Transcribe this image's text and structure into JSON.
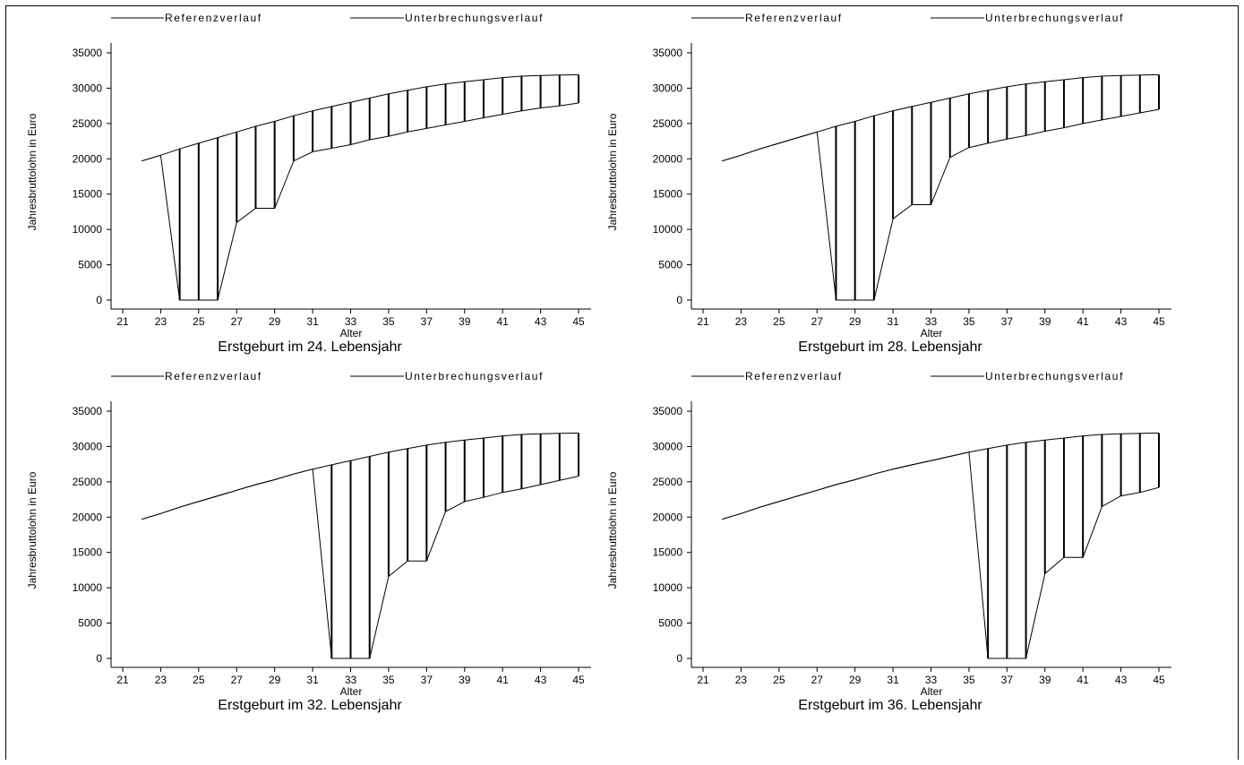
{
  "legend": {
    "reference_label": "Referenzverlauf",
    "interruption_label": "Unterbrechungsverlauf"
  },
  "chart_data": [
    {
      "type": "line",
      "title": "Erstgeburt im 24. Lebensjahr",
      "xlabel": "Alter",
      "ylabel": "Jahresbruttolohn in Euro",
      "xlim": [
        21,
        45
      ],
      "ylim": [
        0,
        35000
      ],
      "xticks": [
        21,
        23,
        25,
        27,
        29,
        31,
        33,
        35,
        37,
        39,
        41,
        43,
        45
      ],
      "yticks": [
        0,
        5000,
        10000,
        15000,
        20000,
        25000,
        30000,
        35000
      ],
      "x": [
        22,
        23,
        24,
        25,
        26,
        27,
        28,
        29,
        30,
        31,
        32,
        33,
        34,
        35,
        36,
        37,
        38,
        39,
        40,
        41,
        42,
        43,
        44,
        45
      ],
      "series": [
        {
          "name": "Referenzverlauf",
          "values": [
            19700,
            20500,
            21400,
            22200,
            23000,
            23800,
            24600,
            25300,
            26100,
            26800,
            27400,
            28000,
            28600,
            29200,
            29700,
            30200,
            30600,
            30900,
            31200,
            31500,
            31700,
            31800,
            31850,
            31900
          ]
        },
        {
          "name": "Unterbrechungsverlauf",
          "values": [
            19700,
            20500,
            0,
            0,
            0,
            11000,
            13000,
            13000,
            19700,
            21000,
            21500,
            22000,
            22700,
            23200,
            23800,
            24300,
            24800,
            25300,
            25800,
            26300,
            26800,
            27200,
            27500,
            27900
          ]
        }
      ],
      "grid": false,
      "legend_position": "top"
    },
    {
      "type": "line",
      "title": "Erstgeburt im 28. Lebensjahr",
      "xlabel": "Alter",
      "ylabel": "Jahresbruttolohn in Euro",
      "xlim": [
        21,
        45
      ],
      "ylim": [
        0,
        35000
      ],
      "xticks": [
        21,
        23,
        25,
        27,
        29,
        31,
        33,
        35,
        37,
        39,
        41,
        43,
        45
      ],
      "yticks": [
        0,
        5000,
        10000,
        15000,
        20000,
        25000,
        30000,
        35000
      ],
      "x": [
        22,
        23,
        24,
        25,
        26,
        27,
        28,
        29,
        30,
        31,
        32,
        33,
        34,
        35,
        36,
        37,
        38,
        39,
        40,
        41,
        42,
        43,
        44,
        45
      ],
      "series": [
        {
          "name": "Referenzverlauf",
          "values": [
            19700,
            20500,
            21400,
            22200,
            23000,
            23800,
            24600,
            25300,
            26100,
            26800,
            27400,
            28000,
            28600,
            29200,
            29700,
            30200,
            30600,
            30900,
            31200,
            31500,
            31700,
            31800,
            31850,
            31900
          ]
        },
        {
          "name": "Unterbrechungsverlauf",
          "values": [
            19700,
            20500,
            21400,
            22200,
            23000,
            23800,
            0,
            0,
            0,
            11500,
            13500,
            13500,
            20200,
            21600,
            22200,
            22800,
            23300,
            23900,
            24400,
            25000,
            25500,
            26000,
            26500,
            27000
          ]
        }
      ],
      "grid": false,
      "legend_position": "top"
    },
    {
      "type": "line",
      "title": "Erstgeburt im 32. Lebensjahr",
      "xlabel": "Alter",
      "ylabel": "Jahresbruttolohn in Euro",
      "xlim": [
        21,
        45
      ],
      "ylim": [
        0,
        35000
      ],
      "xticks": [
        21,
        23,
        25,
        27,
        29,
        31,
        33,
        35,
        37,
        39,
        41,
        43,
        45
      ],
      "yticks": [
        0,
        5000,
        10000,
        15000,
        20000,
        25000,
        30000,
        35000
      ],
      "x": [
        22,
        23,
        24,
        25,
        26,
        27,
        28,
        29,
        30,
        31,
        32,
        33,
        34,
        35,
        36,
        37,
        38,
        39,
        40,
        41,
        42,
        43,
        44,
        45
      ],
      "series": [
        {
          "name": "Referenzverlauf",
          "values": [
            19700,
            20500,
            21400,
            22200,
            23000,
            23800,
            24600,
            25300,
            26100,
            26800,
            27400,
            28000,
            28600,
            29200,
            29700,
            30200,
            30600,
            30900,
            31200,
            31500,
            31700,
            31800,
            31850,
            31900
          ]
        },
        {
          "name": "Unterbrechungsverlauf",
          "values": [
            19700,
            20500,
            21400,
            22200,
            23000,
            23800,
            24600,
            25300,
            26100,
            26800,
            0,
            0,
            0,
            11600,
            13800,
            13800,
            20800,
            22200,
            22800,
            23500,
            24000,
            24600,
            25200,
            25800
          ]
        }
      ],
      "grid": false,
      "legend_position": "top"
    },
    {
      "type": "line",
      "title": "Erstgeburt im 36. Lebensjahr",
      "xlabel": "Alter",
      "ylabel": "Jahresbruttolohn in Euro",
      "xlim": [
        21,
        45
      ],
      "ylim": [
        0,
        35000
      ],
      "xticks": [
        21,
        23,
        25,
        27,
        29,
        31,
        33,
        35,
        37,
        39,
        41,
        43,
        45
      ],
      "yticks": [
        0,
        5000,
        10000,
        15000,
        20000,
        25000,
        30000,
        35000
      ],
      "x": [
        22,
        23,
        24,
        25,
        26,
        27,
        28,
        29,
        30,
        31,
        32,
        33,
        34,
        35,
        36,
        37,
        38,
        39,
        40,
        41,
        42,
        43,
        44,
        45
      ],
      "series": [
        {
          "name": "Referenzverlauf",
          "values": [
            19700,
            20500,
            21400,
            22200,
            23000,
            23800,
            24600,
            25300,
            26100,
            26800,
            27400,
            28000,
            28600,
            29200,
            29700,
            30200,
            30600,
            30900,
            31200,
            31500,
            31700,
            31800,
            31850,
            31900
          ]
        },
        {
          "name": "Unterbrechungsverlauf",
          "values": [
            19700,
            20500,
            21400,
            22200,
            23000,
            23800,
            24600,
            25300,
            26100,
            26800,
            27400,
            28000,
            28600,
            29200,
            0,
            0,
            0,
            12000,
            14300,
            14300,
            21500,
            23000,
            23500,
            24200
          ]
        }
      ],
      "grid": false,
      "legend_position": "top"
    }
  ]
}
